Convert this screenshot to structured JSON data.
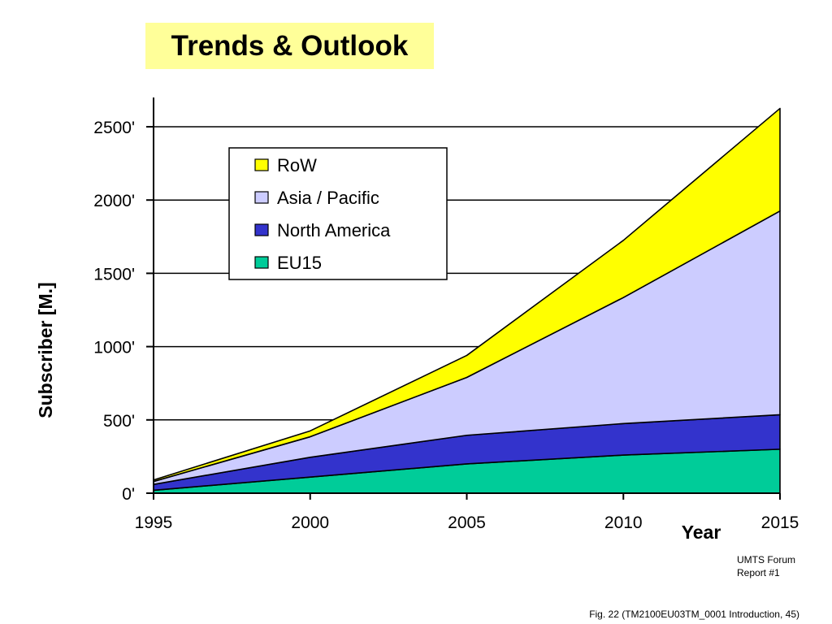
{
  "slide": {
    "title": "Trends & Outlook",
    "source_line1": "UMTS Forum",
    "source_line2": "Report #1",
    "caption": "Fig. 22 (TM2100EU03TM_0001 Introduction, 45)"
  },
  "chart_data": {
    "type": "area",
    "stacked": true,
    "title": "",
    "xlabel": "Year",
    "ylabel": "Subscriber [M.]",
    "x": [
      1995,
      2000,
      2005,
      2010,
      2015
    ],
    "x_tick_labels": [
      "1995",
      "2000",
      "2005",
      "2010",
      "2015"
    ],
    "y_ticks": [
      0,
      500,
      1000,
      1500,
      2000,
      2500
    ],
    "y_tick_labels": [
      "0'",
      "500'",
      "1000'",
      "1500'",
      "2000'",
      "2500'"
    ],
    "ylim": [
      0,
      2700
    ],
    "grid": "horizontal",
    "legend_position": "top-left",
    "series": [
      {
        "name": "EU15",
        "color": "#00cc99",
        "values": [
          20,
          110,
          200,
          260,
          300
        ]
      },
      {
        "name": "North America",
        "color": "#3333cc",
        "values": [
          40,
          135,
          195,
          215,
          235
        ]
      },
      {
        "name": "Asia / Pacific",
        "color": "#ccccff",
        "values": [
          20,
          140,
          395,
          860,
          1390
        ]
      },
      {
        "name": "RoW",
        "color": "#ffff00",
        "values": [
          10,
          40,
          150,
          390,
          700
        ]
      }
    ],
    "legend_order": [
      "RoW",
      "Asia / Pacific",
      "North America",
      "EU15"
    ]
  }
}
